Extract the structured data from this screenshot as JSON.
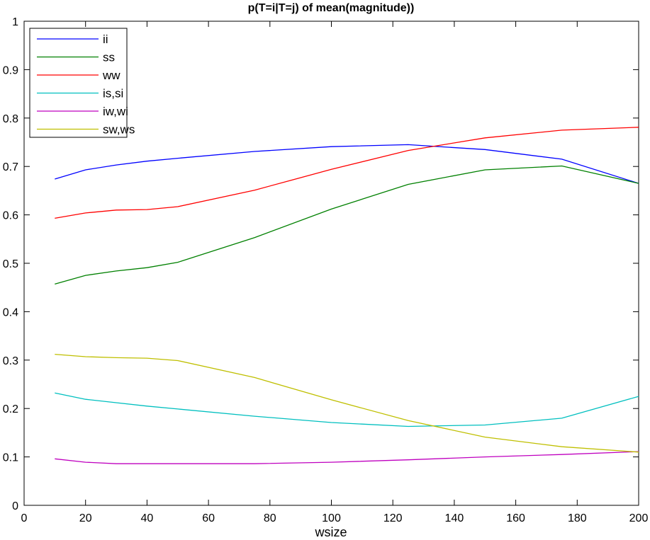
{
  "chart_data": {
    "type": "line",
    "title": "p(T=i|T=j) of mean(magnitude))",
    "xlabel": "wsize",
    "ylabel": "",
    "xlim": [
      0,
      200
    ],
    "ylim": [
      0,
      1
    ],
    "xticks": [
      0,
      20,
      40,
      60,
      80,
      100,
      120,
      140,
      160,
      180,
      200
    ],
    "yticks": [
      0,
      0.1,
      0.2,
      0.3,
      0.4,
      0.5,
      0.6,
      0.7,
      0.8,
      0.9,
      1
    ],
    "ytick_labels": [
      "0",
      "0.1",
      "0.2",
      "0.3",
      "0.4",
      "0.5",
      "0.6",
      "0.7",
      "0.8",
      "0.9",
      "1"
    ],
    "grid": false,
    "legend_position": "top-left",
    "x": [
      10,
      20,
      30,
      40,
      50,
      75,
      100,
      125,
      150,
      175,
      200
    ],
    "series": [
      {
        "name": "ii",
        "color": "#0000ff",
        "values": [
          0.674,
          0.693,
          0.703,
          0.711,
          0.717,
          0.731,
          0.741,
          0.745,
          0.735,
          0.715,
          0.665
        ]
      },
      {
        "name": "ss",
        "color": "#008000",
        "values": [
          0.457,
          0.475,
          0.484,
          0.491,
          0.502,
          0.553,
          0.612,
          0.663,
          0.693,
          0.701,
          0.665
        ]
      },
      {
        "name": "ww",
        "color": "#ff0000",
        "values": [
          0.593,
          0.604,
          0.61,
          0.611,
          0.617,
          0.651,
          0.694,
          0.733,
          0.759,
          0.775,
          0.781
        ]
      },
      {
        "name": "is,si",
        "color": "#00bfbf",
        "values": [
          0.232,
          0.219,
          0.212,
          0.205,
          0.199,
          0.184,
          0.171,
          0.163,
          0.166,
          0.18,
          0.225
        ]
      },
      {
        "name": "iw,wi",
        "color": "#bf00bf",
        "values": [
          0.096,
          0.089,
          0.086,
          0.086,
          0.086,
          0.086,
          0.089,
          0.094,
          0.1,
          0.105,
          0.111
        ]
      },
      {
        "name": "sw,ws",
        "color": "#bfbf00",
        "values": [
          0.312,
          0.307,
          0.305,
          0.304,
          0.299,
          0.264,
          0.218,
          0.175,
          0.141,
          0.121,
          0.11
        ]
      }
    ]
  }
}
